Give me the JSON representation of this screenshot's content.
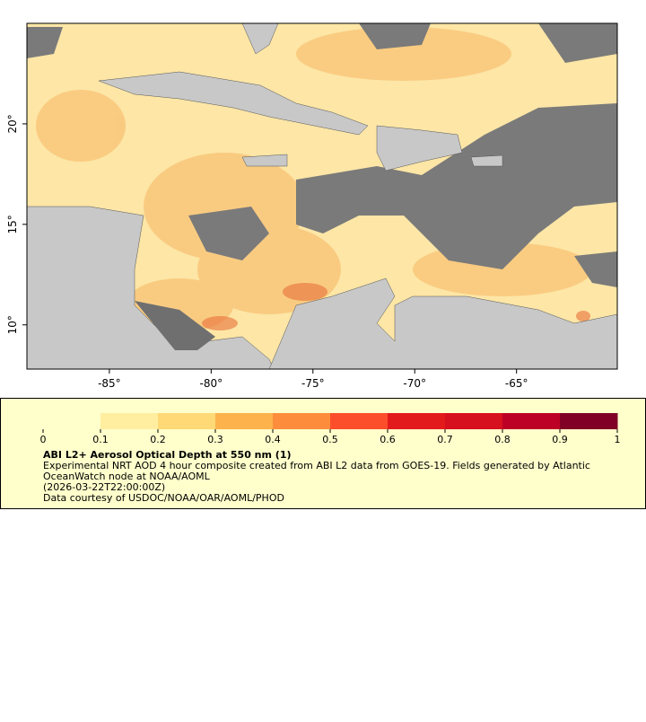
{
  "map": {
    "xlim": [
      -89.05,
      -60.05
    ],
    "ylim": [
      7.8,
      25
    ],
    "xticks": [
      {
        "value": -85,
        "label": "-85°"
      },
      {
        "value": -80,
        "label": "-80°"
      },
      {
        "value": -75,
        "label": "-75°"
      },
      {
        "value": -70,
        "label": "-70°"
      },
      {
        "value": -65,
        "label": "-65°"
      }
    ],
    "yticks": [
      {
        "value": 10,
        "label": "10°"
      },
      {
        "value": 15,
        "label": "15°"
      },
      {
        "value": 20,
        "label": "20°"
      }
    ]
  },
  "legend": {
    "colorbar": {
      "lim": [
        0,
        1
      ],
      "ticks": [
        0,
        0.1,
        0.2,
        0.3,
        0.4,
        0.5,
        0.6,
        0.7,
        0.8,
        0.9,
        1
      ],
      "colors": [
        "#ffffcc",
        "#ffeda0",
        "#fed976",
        "#feb24c",
        "#fd8d3c",
        "#fc4e2a",
        "#e31a1c",
        "#d7101f",
        "#bd0026",
        "#800026"
      ]
    },
    "title": "ABI L2+ Aerosol Optical Depth at 550 nm (1)",
    "lines": [
      "Experimental NRT AOD 4 hour composite created from ABI L2 data from GOES-19. Fields generated by Atlantic",
      "OceanWatch node at NOAA/AOML",
      "(2026-03-22T22:00:00Z)",
      "Data courtesy of USDOC/NOAA/OAR/AOML/PHOD"
    ]
  }
}
